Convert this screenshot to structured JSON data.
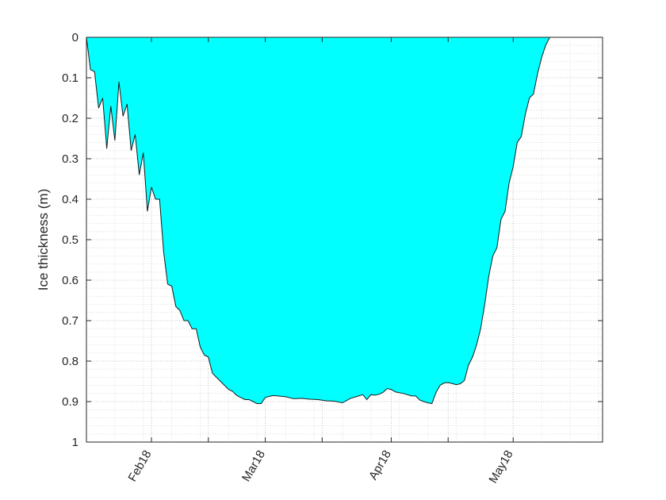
{
  "chart_data": {
    "type": "area",
    "title": "",
    "xlabel": "",
    "ylabel": "Ice thickness (m)",
    "y_reversed": true,
    "ylim": [
      0,
      1
    ],
    "yticks": [
      "0",
      "0.1",
      "0.2",
      "0.3",
      "0.4",
      "0.5",
      "0.6",
      "0.7",
      "0.8",
      "0.9",
      "1"
    ],
    "yminor_step": 0.02,
    "xlim": [
      "2018-01-16",
      "2018-05-23"
    ],
    "xtick_labels": [
      {
        "date": "2018-02-01",
        "label": "Feb18"
      },
      {
        "date": "2018-03-01",
        "label": "Mar18"
      },
      {
        "date": "2018-04-01",
        "label": "Apr18"
      },
      {
        "date": "2018-05-01",
        "label": "May18"
      }
    ],
    "xtick_unlabeled": [
      "2018-02-15",
      "2018-03-15",
      "2018-04-15"
    ],
    "grid": "dotted",
    "fill_color": "#00ffff",
    "edge_color": "#1a1a1a",
    "series": [
      {
        "x": [
          "2018-01-16",
          "2018-01-17",
          "2018-01-18",
          "2018-01-19",
          "2018-01-20",
          "2018-01-21",
          "2018-01-22",
          "2018-01-23",
          "2018-01-24",
          "2018-01-25",
          "2018-01-26",
          "2018-01-27",
          "2018-01-28",
          "2018-01-29",
          "2018-01-30",
          "2018-01-31",
          "2018-02-01",
          "2018-02-02",
          "2018-02-03",
          "2018-02-04",
          "2018-02-05",
          "2018-02-06",
          "2018-02-07",
          "2018-02-08",
          "2018-02-09",
          "2018-02-10",
          "2018-02-11",
          "2018-02-12",
          "2018-02-13",
          "2018-02-14",
          "2018-02-15",
          "2018-02-16",
          "2018-02-17",
          "2018-02-18",
          "2018-02-19",
          "2018-02-20",
          "2018-02-21",
          "2018-02-22",
          "2018-02-23",
          "2018-02-24",
          "2018-02-25",
          "2018-02-26",
          "2018-02-27",
          "2018-02-28",
          "2018-03-01",
          "2018-03-02",
          "2018-03-03",
          "2018-03-04",
          "2018-03-06",
          "2018-03-08",
          "2018-03-10",
          "2018-03-12",
          "2018-03-14",
          "2018-03-16",
          "2018-03-18",
          "2018-03-20",
          "2018-03-22",
          "2018-03-24",
          "2018-03-25",
          "2018-03-26",
          "2018-03-27",
          "2018-03-28",
          "2018-03-29",
          "2018-03-30",
          "2018-03-31",
          "2018-04-01",
          "2018-04-02",
          "2018-04-04",
          "2018-04-06",
          "2018-04-07",
          "2018-04-08",
          "2018-04-09",
          "2018-04-10",
          "2018-04-11",
          "2018-04-12",
          "2018-04-13",
          "2018-04-14",
          "2018-04-15",
          "2018-04-17",
          "2018-04-18",
          "2018-04-19",
          "2018-04-20",
          "2018-04-21",
          "2018-04-22",
          "2018-04-23",
          "2018-04-24",
          "2018-04-25",
          "2018-04-26",
          "2018-04-27",
          "2018-04-28",
          "2018-04-29",
          "2018-04-30",
          "2018-05-01",
          "2018-05-02",
          "2018-05-03",
          "2018-05-04",
          "2018-05-05",
          "2018-05-06",
          "2018-05-07",
          "2018-05-08",
          "2018-05-09",
          "2018-05-10",
          "2018-05-11",
          "2018-05-12",
          "2018-05-13",
          "2018-05-14",
          "2018-05-15",
          "2018-05-16",
          "2018-05-17",
          "2018-05-18",
          "2018-05-19",
          "2018-05-20",
          "2018-05-21",
          "2018-05-22",
          "2018-05-23"
        ],
        "y": [
          0,
          0.08,
          0.085,
          0.175,
          0.15,
          0.275,
          0.17,
          0.255,
          0.11,
          0.195,
          0.165,
          0.28,
          0.24,
          0.34,
          0.285,
          0.43,
          0.37,
          0.4,
          0.4,
          0.53,
          0.61,
          0.615,
          0.665,
          0.675,
          0.7,
          0.7,
          0.72,
          0.72,
          0.765,
          0.785,
          0.79,
          0.83,
          0.84,
          0.85,
          0.86,
          0.87,
          0.875,
          0.885,
          0.89,
          0.895,
          0.895,
          0.9,
          0.905,
          0.905,
          0.89,
          0.887,
          0.885,
          0.886,
          0.888,
          0.893,
          0.892,
          0.894,
          0.895,
          0.898,
          0.899,
          0.903,
          0.892,
          0.886,
          0.883,
          0.895,
          0.883,
          0.884,
          0.882,
          0.877,
          0.868,
          0.87,
          0.876,
          0.88,
          0.886,
          0.886,
          0.896,
          0.9,
          0.903,
          0.905,
          0.878,
          0.86,
          0.854,
          0.853,
          0.858,
          0.856,
          0.848,
          0.81,
          0.79,
          0.76,
          0.72,
          0.66,
          0.59,
          0.54,
          0.52,
          0.45,
          0.43,
          0.36,
          0.32,
          0.26,
          0.245,
          0.19,
          0.15,
          0.14,
          0.09,
          0.05,
          0.02,
          0,
          0,
          0,
          0,
          0,
          0,
          0,
          0,
          0,
          0,
          0,
          0,
          0,
          0
        ]
      }
    ]
  }
}
